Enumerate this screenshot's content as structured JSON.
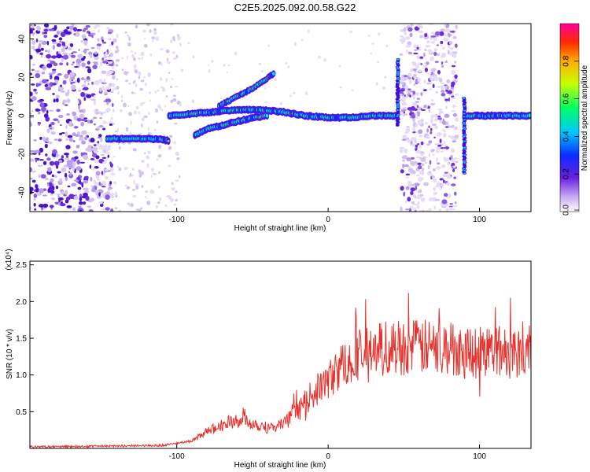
{
  "title": "C2E5.2025.092.00.58.G22",
  "chart_data": [
    {
      "type": "heatmap",
      "xlabel": "Height of straight line (km)",
      "ylabel": "Frequency (Hz)",
      "xlim": [
        -197,
        134
      ],
      "ylim": [
        -50,
        48
      ],
      "xticks": [
        -100,
        0,
        100
      ],
      "yticks": [
        -40,
        -20,
        0,
        20,
        40
      ],
      "colorbar": {
        "label": "Normalized spectral amplitude",
        "range": [
          0,
          1
        ],
        "ticks": [
          "0.0",
          "0.2",
          "0.4",
          "0.6",
          "0.8"
        ],
        "colormap": "rainbow"
      },
      "traces": [
        {
          "name": "",
          "x": [
            -146,
            -140,
            -130,
            -120,
            -110,
            -105
          ],
          "y": [
            -12,
            -12,
            -12,
            -12,
            -12.5,
            -13
          ]
        },
        {
          "name": "",
          "x": [
            -105,
            -90,
            -75,
            -60,
            -45,
            -30,
            -15,
            0,
            15,
            30,
            40,
            46
          ],
          "y": [
            0,
            1,
            2,
            3,
            3,
            2,
            0,
            -1,
            -1,
            0,
            0,
            0
          ]
        },
        {
          "name": "",
          "x": [
            -72,
            -65,
            -58,
            -50,
            -43,
            -36
          ],
          "y": [
            5,
            8,
            11,
            14,
            18,
            22
          ]
        },
        {
          "name": "",
          "x": [
            -88,
            -80,
            -70,
            -60,
            -50,
            -40
          ],
          "y": [
            -10,
            -7,
            -5,
            -3,
            -1,
            0
          ]
        },
        {
          "name": "",
          "x": [
            90,
            100,
            110,
            120,
            130,
            134
          ],
          "y": [
            0,
            0,
            0,
            0,
            0,
            0
          ]
        }
      ]
    },
    {
      "type": "line",
      "xlabel": "Height of straight line (km)",
      "ylabel": "SNR (10 * v/v)",
      "y_multiplier": "(x10⁴)",
      "xlim": [
        -197,
        134
      ],
      "ylim": [
        0,
        2.55
      ],
      "xticks": [
        -100,
        0,
        100
      ],
      "yticks": [
        "0.5",
        "1.0",
        "1.5",
        "2.0",
        "2.5"
      ],
      "color": "#e8302b",
      "envelope": {
        "x": [
          -197,
          -150,
          -110,
          -90,
          -80,
          -70,
          -60,
          -50,
          -40,
          -30,
          -20,
          -10,
          0,
          10,
          20,
          40,
          60,
          80,
          100,
          120,
          134
        ],
        "y": [
          0.02,
          0.03,
          0.04,
          0.1,
          0.22,
          0.32,
          0.4,
          0.35,
          0.28,
          0.32,
          0.5,
          0.75,
          0.92,
          1.15,
          1.28,
          1.38,
          1.38,
          1.36,
          1.33,
          1.32,
          1.32
        ]
      }
    }
  ]
}
